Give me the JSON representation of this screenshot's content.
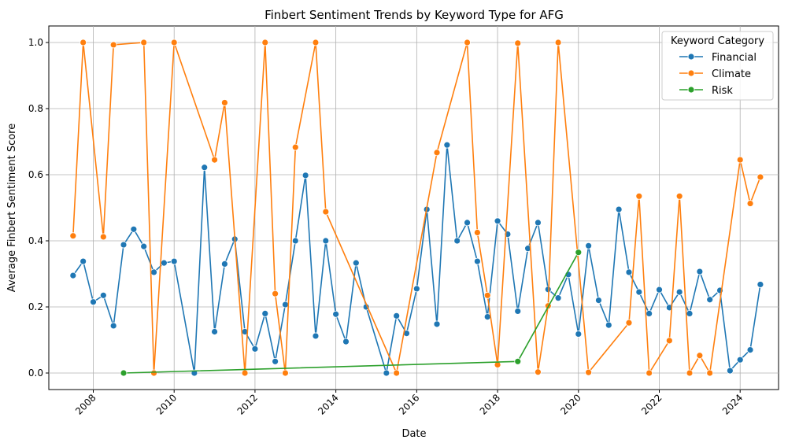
{
  "chart_data": {
    "type": "line",
    "title": "Finbert Sentiment Trends by Keyword Type for AFG",
    "xlabel": "Date",
    "ylabel": "Average Finbert Sentiment Score",
    "xlim": [
      2006.9,
      2024.95
    ],
    "ylim": [
      -0.05,
      1.05
    ],
    "x_ticks": [
      2008,
      2010,
      2012,
      2014,
      2016,
      2018,
      2020,
      2022,
      2024
    ],
    "x_tick_labels": [
      "2008",
      "2010",
      "2012",
      "2014",
      "2016",
      "2018",
      "2020",
      "2022",
      "2024"
    ],
    "y_ticks": [
      0.0,
      0.2,
      0.4,
      0.6,
      0.8,
      1.0
    ],
    "y_tick_labels": [
      "0.0",
      "0.2",
      "0.4",
      "0.6",
      "0.8",
      "1.0"
    ],
    "grid": true,
    "legend": {
      "title": "Keyword Category",
      "placement": "top-right"
    },
    "series": [
      {
        "name": "Financial",
        "color": "#1f77b4",
        "points": [
          [
            2007.5,
            0.295
          ],
          [
            2007.75,
            0.338
          ],
          [
            2008.0,
            0.215
          ],
          [
            2008.25,
            0.235
          ],
          [
            2008.5,
            0.143
          ],
          [
            2008.75,
            0.388
          ],
          [
            2009.0,
            0.435
          ],
          [
            2009.25,
            0.383
          ],
          [
            2009.5,
            0.305
          ],
          [
            2009.75,
            0.333
          ],
          [
            2010.0,
            0.338
          ],
          [
            2010.5,
            0.0
          ],
          [
            2010.75,
            0.622
          ],
          [
            2011.0,
            0.125
          ],
          [
            2011.25,
            0.33
          ],
          [
            2011.5,
            0.405
          ],
          [
            2011.75,
            0.125
          ],
          [
            2012.0,
            0.073
          ],
          [
            2012.25,
            0.18
          ],
          [
            2012.5,
            0.035
          ],
          [
            2012.75,
            0.207
          ],
          [
            2013.0,
            0.4
          ],
          [
            2013.25,
            0.598
          ],
          [
            2013.5,
            0.112
          ],
          [
            2013.75,
            0.4
          ],
          [
            2014.0,
            0.178
          ],
          [
            2014.25,
            0.095
          ],
          [
            2014.5,
            0.333
          ],
          [
            2014.75,
            0.2
          ],
          [
            2015.25,
            0.0
          ],
          [
            2015.5,
            0.173
          ],
          [
            2015.75,
            0.12
          ],
          [
            2016.0,
            0.255
          ],
          [
            2016.25,
            0.495
          ],
          [
            2016.5,
            0.148
          ],
          [
            2016.75,
            0.69
          ],
          [
            2017.0,
            0.4
          ],
          [
            2017.25,
            0.455
          ],
          [
            2017.5,
            0.338
          ],
          [
            2017.75,
            0.17
          ],
          [
            2018.0,
            0.46
          ],
          [
            2018.25,
            0.42
          ],
          [
            2018.5,
            0.187
          ],
          [
            2018.75,
            0.377
          ],
          [
            2019.0,
            0.455
          ],
          [
            2019.25,
            0.253
          ],
          [
            2019.5,
            0.227
          ],
          [
            2019.75,
            0.298
          ],
          [
            2020.0,
            0.118
          ],
          [
            2020.25,
            0.385
          ],
          [
            2020.5,
            0.22
          ],
          [
            2020.75,
            0.145
          ],
          [
            2021.0,
            0.495
          ],
          [
            2021.25,
            0.305
          ],
          [
            2021.5,
            0.245
          ],
          [
            2021.75,
            0.18
          ],
          [
            2022.0,
            0.252
          ],
          [
            2022.25,
            0.198
          ],
          [
            2022.5,
            0.245
          ],
          [
            2022.75,
            0.18
          ],
          [
            2023.0,
            0.307
          ],
          [
            2023.25,
            0.222
          ],
          [
            2023.5,
            0.25
          ],
          [
            2023.75,
            0.007
          ],
          [
            2024.0,
            0.04
          ],
          [
            2024.25,
            0.07
          ],
          [
            2024.5,
            0.268
          ]
        ]
      },
      {
        "name": "Climate",
        "color": "#ff7f0e",
        "points": [
          [
            2007.5,
            0.415
          ],
          [
            2007.75,
            1.0
          ],
          [
            2008.25,
            0.412
          ],
          [
            2008.5,
            0.993
          ],
          [
            2009.25,
            1.0
          ],
          [
            2009.5,
            0.0
          ],
          [
            2010.0,
            1.0
          ],
          [
            2011.0,
            0.645
          ],
          [
            2011.25,
            0.818
          ],
          [
            2011.75,
            0.0
          ],
          [
            2012.25,
            1.0
          ],
          [
            2012.5,
            0.24
          ],
          [
            2012.75,
            0.0
          ],
          [
            2013.0,
            0.683
          ],
          [
            2013.5,
            1.0
          ],
          [
            2013.75,
            0.488
          ],
          [
            2015.5,
            0.0
          ],
          [
            2016.5,
            0.667
          ],
          [
            2017.25,
            1.0
          ],
          [
            2017.5,
            0.425
          ],
          [
            2017.75,
            0.235
          ],
          [
            2018.0,
            0.025
          ],
          [
            2018.5,
            0.998
          ],
          [
            2019.0,
            0.003
          ],
          [
            2019.25,
            0.203
          ],
          [
            2019.5,
            1.0
          ],
          [
            2020.25,
            0.002
          ],
          [
            2021.25,
            0.152
          ],
          [
            2021.5,
            0.535
          ],
          [
            2021.75,
            0.0
          ],
          [
            2022.25,
            0.098
          ],
          [
            2022.5,
            0.535
          ],
          [
            2022.75,
            0.0
          ],
          [
            2023.0,
            0.053
          ],
          [
            2023.25,
            0.0
          ],
          [
            2024.0,
            0.645
          ],
          [
            2024.25,
            0.513
          ],
          [
            2024.5,
            0.593
          ]
        ]
      },
      {
        "name": "Risk",
        "color": "#2ca02c",
        "points": [
          [
            2008.75,
            0.0
          ],
          [
            2018.5,
            0.035
          ],
          [
            2020.0,
            0.365
          ]
        ]
      }
    ]
  }
}
